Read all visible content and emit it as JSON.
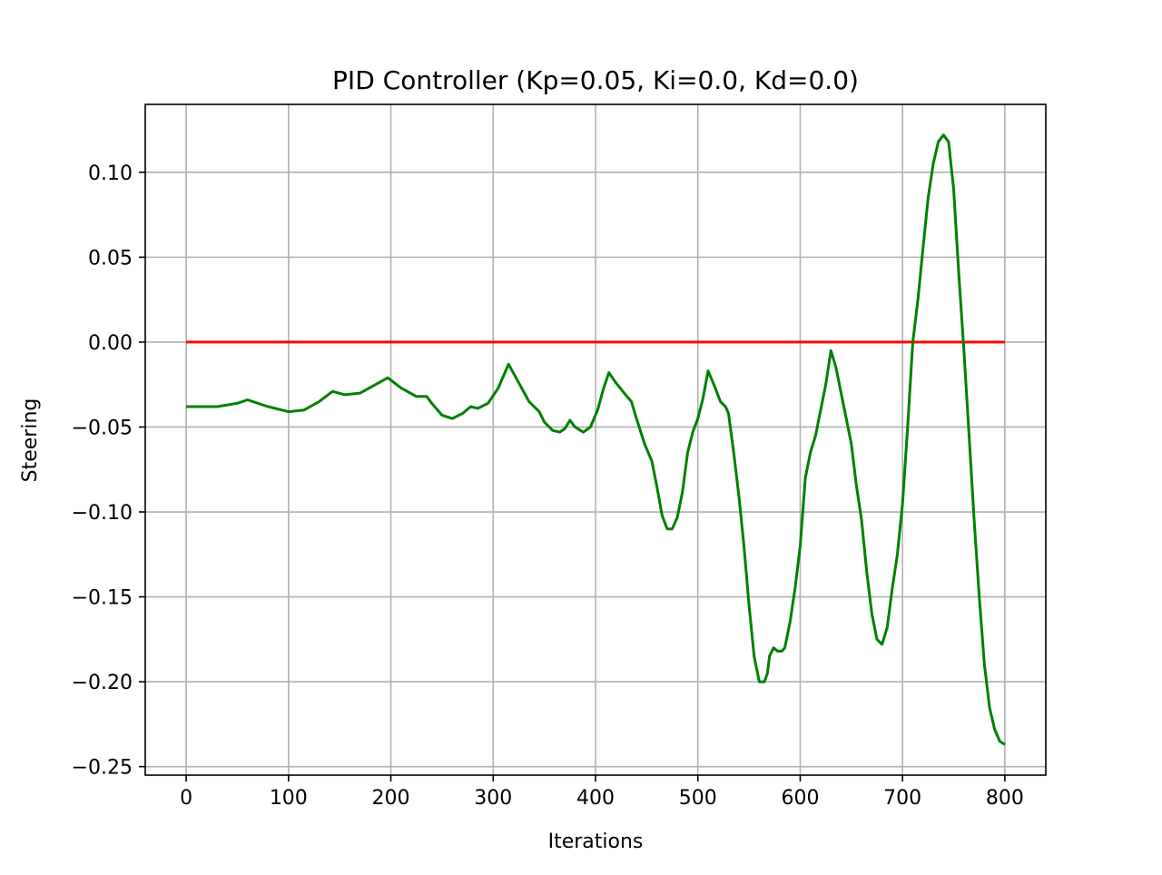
{
  "chart_data": {
    "type": "line",
    "title": "PID Controller (Kp=0.05, Ki=0.0, Kd=0.0)",
    "xlabel": "Iterations",
    "ylabel": "Steering",
    "xlim": [
      -40,
      840
    ],
    "ylim": [
      -0.255,
      0.14
    ],
    "grid": true,
    "xticks": [
      0,
      100,
      200,
      300,
      400,
      500,
      600,
      700,
      800
    ],
    "xtick_labels": [
      "0",
      "100",
      "200",
      "300",
      "400",
      "500",
      "600",
      "700",
      "800"
    ],
    "yticks": [
      0.1,
      0.05,
      0.0,
      -0.05,
      -0.1,
      -0.15,
      -0.2,
      -0.25
    ],
    "ytick_labels": [
      "0.10",
      "0.05",
      "0.00",
      "−0.05",
      "−0.10",
      "−0.15",
      "−0.20",
      "−0.25"
    ],
    "series": [
      {
        "color": "#ff0000",
        "x": [
          0,
          800
        ],
        "y": [
          0.0,
          0.0
        ]
      },
      {
        "color": "#008000",
        "x": [
          0,
          30,
          50,
          60,
          65,
          80,
          100,
          115,
          130,
          143,
          155,
          170,
          185,
          197,
          210,
          225,
          235,
          240,
          250,
          260,
          270,
          278,
          285,
          295,
          305,
          315,
          325,
          335,
          345,
          350,
          358,
          365,
          370,
          375,
          380,
          388,
          395,
          402,
          408,
          413,
          420,
          428,
          435,
          440,
          448,
          455,
          460,
          465,
          470,
          475,
          480,
          485,
          490,
          495,
          500,
          505,
          510,
          517,
          522,
          527,
          530,
          535,
          540,
          545,
          550,
          555,
          560,
          565,
          568,
          570,
          574,
          578,
          582,
          585,
          590,
          595,
          600,
          605,
          610,
          615,
          620,
          625,
          630,
          635,
          640,
          645,
          650,
          655,
          660,
          665,
          670,
          675,
          680,
          685,
          690,
          695,
          700,
          705,
          710,
          715,
          720,
          725,
          730,
          735,
          740,
          745,
          750,
          755,
          760,
          765,
          770,
          775,
          780,
          785,
          790,
          795,
          800
        ],
        "y": [
          -0.038,
          -0.038,
          -0.036,
          -0.034,
          -0.035,
          -0.038,
          -0.041,
          -0.04,
          -0.035,
          -0.029,
          -0.031,
          -0.03,
          -0.025,
          -0.021,
          -0.027,
          -0.032,
          -0.032,
          -0.036,
          -0.043,
          -0.045,
          -0.042,
          -0.038,
          -0.039,
          -0.036,
          -0.027,
          -0.013,
          -0.024,
          -0.035,
          -0.041,
          -0.047,
          -0.052,
          -0.053,
          -0.051,
          -0.046,
          -0.05,
          -0.053,
          -0.05,
          -0.04,
          -0.027,
          -0.018,
          -0.024,
          -0.03,
          -0.035,
          -0.045,
          -0.06,
          -0.07,
          -0.085,
          -0.102,
          -0.11,
          -0.11,
          -0.103,
          -0.088,
          -0.065,
          -0.053,
          -0.045,
          -0.033,
          -0.017,
          -0.027,
          -0.035,
          -0.038,
          -0.042,
          -0.065,
          -0.09,
          -0.12,
          -0.155,
          -0.185,
          -0.2,
          -0.2,
          -0.195,
          -0.185,
          -0.18,
          -0.182,
          -0.182,
          -0.18,
          -0.165,
          -0.145,
          -0.12,
          -0.08,
          -0.065,
          -0.055,
          -0.04,
          -0.025,
          -0.005,
          -0.015,
          -0.03,
          -0.045,
          -0.06,
          -0.085,
          -0.105,
          -0.135,
          -0.16,
          -0.175,
          -0.178,
          -0.168,
          -0.145,
          -0.125,
          -0.095,
          -0.05,
          0.0,
          0.025,
          0.055,
          0.085,
          0.105,
          0.118,
          0.122,
          0.118,
          0.09,
          0.04,
          -0.005,
          -0.055,
          -0.105,
          -0.15,
          -0.19,
          -0.215,
          -0.228,
          -0.235,
          -0.237
        ]
      }
    ]
  }
}
